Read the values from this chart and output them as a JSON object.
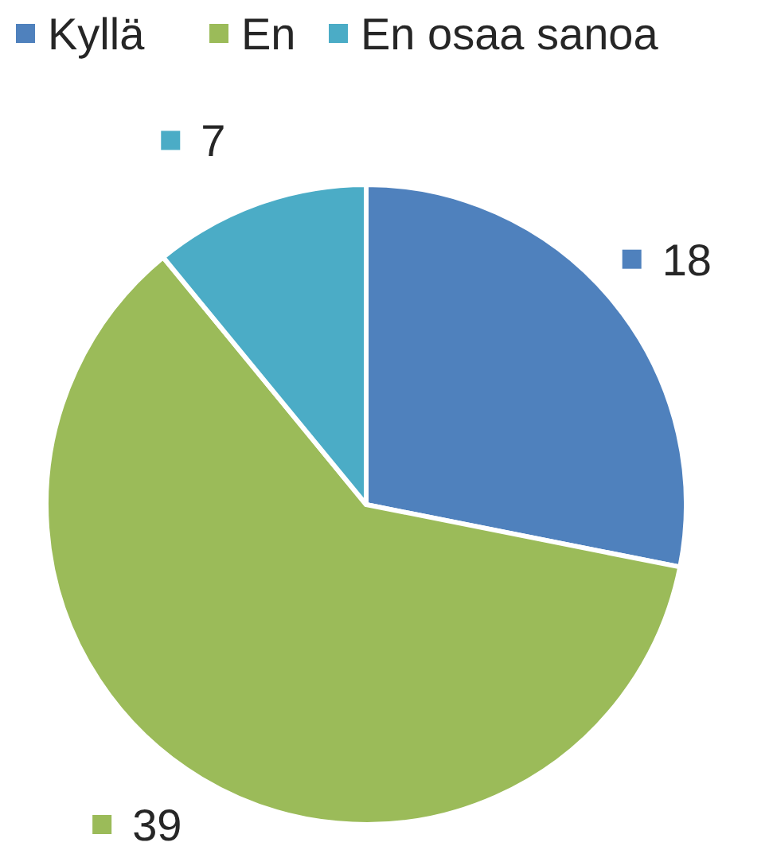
{
  "chart_data": {
    "type": "pie",
    "categories": [
      "Kyllä",
      "En",
      "En osaa sanoa"
    ],
    "values": [
      18,
      39,
      7
    ],
    "colors": [
      "#4f81bd",
      "#9bbb59",
      "#4bacc6"
    ],
    "data_labels": true,
    "legend": "top"
  }
}
